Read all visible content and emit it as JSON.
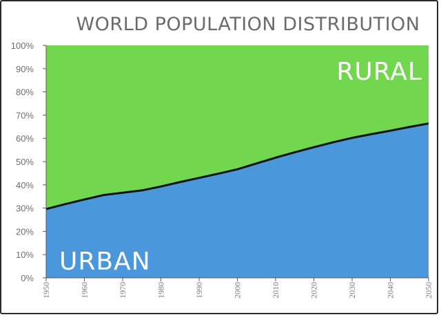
{
  "chart_data": {
    "type": "area",
    "title": "WORLD POPULATION DISTRIBUTION",
    "x": [
      1950,
      1955,
      1960,
      1965,
      1970,
      1975,
      1980,
      1985,
      1990,
      1995,
      2000,
      2005,
      2010,
      2015,
      2020,
      2025,
      2030,
      2035,
      2040,
      2045,
      2050
    ],
    "series": [
      {
        "name": "URBAN",
        "color": "#4a98db",
        "values": [
          29.6,
          31.7,
          33.7,
          35.6,
          36.6,
          37.6,
          39.3,
          41.2,
          43.0,
          44.8,
          46.7,
          49.2,
          51.7,
          54.0,
          56.2,
          58.3,
          60.2,
          61.8,
          63.3,
          64.9,
          66.4
        ]
      },
      {
        "name": "RURAL",
        "color": "#72d74f",
        "values": [
          70.4,
          68.3,
          66.3,
          64.4,
          63.4,
          62.4,
          60.7,
          58.8,
          57.0,
          55.2,
          53.3,
          50.8,
          48.3,
          46.0,
          43.8,
          41.7,
          39.8,
          38.2,
          36.7,
          35.1,
          33.6
        ]
      }
    ],
    "ylim": [
      0,
      100
    ],
    "xlim": [
      1950,
      2050
    ],
    "y_ticks": [
      "0%",
      "10%",
      "20%",
      "30%",
      "40%",
      "50%",
      "60%",
      "70%",
      "80%",
      "90%",
      "100%"
    ],
    "x_ticks": [
      "1950",
      "1960",
      "1970",
      "1980",
      "1990",
      "2000",
      "2010",
      "2020",
      "2030",
      "2040",
      "2050"
    ],
    "stacked": true,
    "grid": false
  }
}
